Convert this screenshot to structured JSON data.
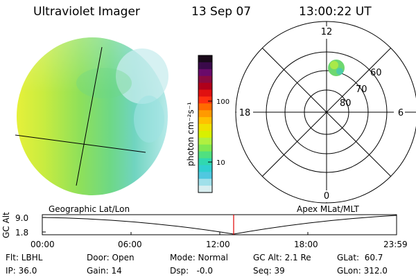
{
  "header": {
    "title": "Ultraviolet Imager",
    "date": "13 Sep 07",
    "time": "13:00:22 UT"
  },
  "colorbar": {
    "unit": "photon cm⁻²s⁻¹",
    "tick_labels": [
      "100",
      "10"
    ],
    "colors": [
      "#1a0a1a",
      "#3a0a4a",
      "#6a0a6a",
      "#8a0a40",
      "#b0001a",
      "#e01010",
      "#ff3010",
      "#ff6a00",
      "#ff9a00",
      "#ffc000",
      "#f0e000",
      "#d8f000",
      "#b0f040",
      "#80e850",
      "#50e080",
      "#30d8b0",
      "#30d0d0",
      "#50c8e0",
      "#a0e0ea",
      "#d8eef0"
    ]
  },
  "polar": {
    "mlt_labels": {
      "top": "12",
      "left": "18",
      "right": "6",
      "bottom": "0"
    },
    "lat_labels": [
      "60",
      "70",
      "80"
    ]
  },
  "track": {
    "left_label": "Geographic Lat/Lon",
    "right_label": "Apex MLat/MLT",
    "y_axis_label": "GC Alt",
    "y_ticks": [
      "9.0",
      "1.8"
    ],
    "x_ticks": [
      "00:00",
      "06:00",
      "12:00",
      "18:00",
      "23:59"
    ]
  },
  "status": {
    "flt": "Flt: LBHL",
    "ip": "IP: 36.0",
    "door": "Door: Open",
    "gain": "Gain: 14",
    "mode": "Mode: Normal",
    "dsp": "Dsp:   -0.0",
    "gcalt": "GC Alt: 2.1 Re",
    "seq": "Seq: 39",
    "glat": "GLat:  60.7",
    "glon": "GLon: 312.0"
  }
}
